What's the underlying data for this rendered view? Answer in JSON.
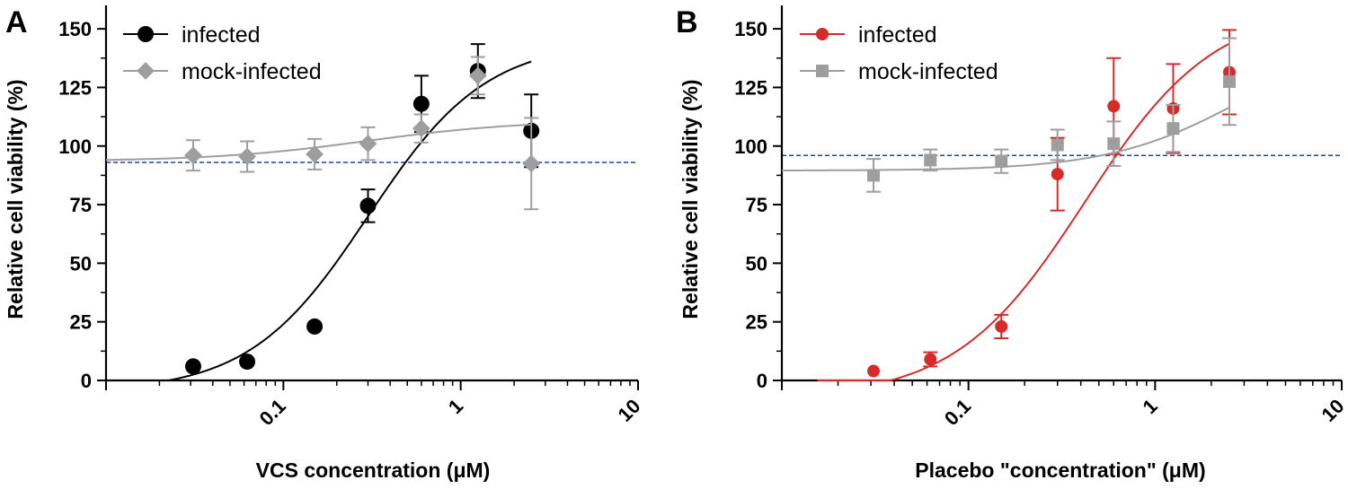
{
  "chart_data": [
    {
      "panel": "A",
      "type": "scatter",
      "xlabel": "VCS concentration (μM)",
      "ylabel": "Relative cell viability (%)",
      "xscale": "log",
      "xlim": [
        0.01,
        10
      ],
      "ylim": [
        0,
        160
      ],
      "x_ticks": [
        0.1,
        1,
        10
      ],
      "x_tick_labels": [
        "0.1",
        "1",
        "10"
      ],
      "y_ticks": [
        0,
        25,
        50,
        75,
        100,
        125,
        150
      ],
      "y_tick_labels": [
        "0",
        "25",
        "50",
        "75",
        "100",
        "125",
        "150"
      ],
      "reference_line": {
        "y": 93,
        "style": "dashed",
        "color": "#2b3fa6"
      },
      "legend_position": "top-left",
      "series": [
        {
          "name": "infected",
          "marker": "circle",
          "color": "#000000",
          "x": [
            0.031,
            0.0625,
            0.15,
            0.3,
            0.6,
            1.25,
            2.5
          ],
          "y": [
            6,
            8,
            23,
            74.5,
            118,
            132,
            106.5
          ],
          "err": [
            0,
            0,
            0,
            7,
            12,
            11.5,
            15.5
          ],
          "fit": {
            "bottom": -5,
            "top": 145,
            "ec50": 0.3,
            "hill": 1.3,
            "x_range": [
              0.018,
              2.5
            ]
          }
        },
        {
          "name": "mock-infected",
          "marker": "diamond",
          "color": "#9e9e9e",
          "x": [
            0.031,
            0.0625,
            0.15,
            0.3,
            0.6,
            1.25,
            2.5
          ],
          "y": [
            96,
            95.5,
            96.5,
            101,
            107.5,
            130,
            92.5
          ],
          "err": [
            6.5,
            6.5,
            6.5,
            7,
            6,
            8,
            19.5
          ],
          "fit": {
            "bottom": 93.5,
            "top": 111,
            "ec50": 0.3,
            "hill": 1.0,
            "x_range": [
              0.01,
              2.5
            ]
          }
        }
      ]
    },
    {
      "panel": "B",
      "type": "scatter",
      "xlabel": "Placebo \"concentration\" (μM)",
      "ylabel": "Relative cell viability (%)",
      "xscale": "log",
      "xlim": [
        0.01,
        10
      ],
      "ylim": [
        0,
        160
      ],
      "x_ticks": [
        0.1,
        1,
        10
      ],
      "x_tick_labels": [
        "0.1",
        "1",
        "10"
      ],
      "y_ticks": [
        0,
        25,
        50,
        75,
        100,
        125,
        150
      ],
      "y_tick_labels": [
        "0",
        "25",
        "50",
        "75",
        "100",
        "125",
        "150"
      ],
      "reference_line": {
        "y": 96,
        "style": "dashed",
        "color": "#2b3fa6"
      },
      "legend_position": "top-left",
      "series": [
        {
          "name": "infected",
          "marker": "circle",
          "color": "#d62b2b",
          "x": [
            0.031,
            0.0625,
            0.15,
            0.3,
            0.6,
            1.25,
            2.5
          ],
          "y": [
            4,
            9,
            23,
            88,
            117,
            116,
            131.5
          ],
          "err": [
            0,
            3,
            5,
            15.5,
            20.5,
            19,
            18
          ],
          "fit": {
            "bottom": -8,
            "top": 160,
            "ec50": 0.42,
            "hill": 1.25,
            "x_range": [
              0.0155,
              2.5
            ]
          }
        },
        {
          "name": "mock-infected",
          "marker": "square",
          "color": "#9e9e9e",
          "x": [
            0.031,
            0.0625,
            0.15,
            0.3,
            0.6,
            1.25,
            2.5
          ],
          "y": [
            87.5,
            94,
            93.5,
            100.5,
            101,
            107.5,
            127.5
          ],
          "err": [
            7,
            4.5,
            5,
            6.5,
            9.5,
            10,
            18.5
          ],
          "fit": {
            "bottom": 89.5,
            "top": 150,
            "ec50": 3.0,
            "hill": 1.2,
            "x_range": [
              0.01,
              2.5
            ]
          }
        }
      ]
    }
  ]
}
